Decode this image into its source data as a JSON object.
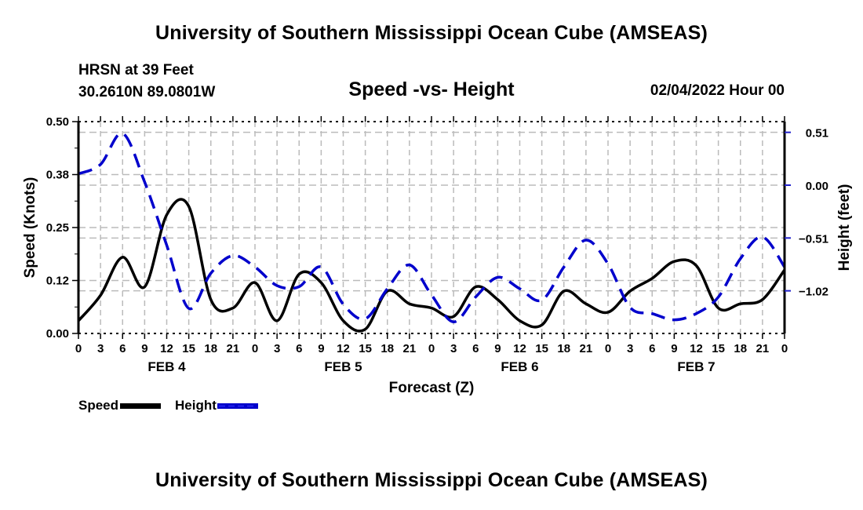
{
  "header": {
    "title": "University of Southern Mississippi Ocean Cube (AMSEAS)",
    "station_line1": "HRSN at 39 Feet",
    "station_line2": "30.2610N  89.0801W",
    "subtitle": "Speed -vs- Height",
    "datestamp": "02/04/2022 Hour 00"
  },
  "footer": {
    "title": "University of Southern Mississippi Ocean Cube (AMSEAS)"
  },
  "legend": {
    "speed_label": "Speed",
    "height_label": "Height"
  },
  "colors": {
    "speed": "#000000",
    "height": "#0000cc",
    "grid": "#bbbbbb",
    "right_axis_ticks": "#2222cc"
  },
  "chart_data": {
    "type": "line",
    "title": "Speed -vs- Height",
    "xlabel": "Forecast (Z)",
    "ylabel": "Speed (Knots)",
    "y2label": "Height (feet)",
    "x_unit": "forecast hour from 02/04/2022 00Z",
    "xlim": [
      0,
      96
    ],
    "ylim": [
      0.0,
      0.5
    ],
    "y2lim": [
      -1.53,
      0.62
    ],
    "grid": true,
    "legend_position": "bottom-left",
    "x_tick_labels": [
      "0",
      "3",
      "6",
      "9",
      "12",
      "15",
      "18",
      "21",
      "0",
      "3",
      "6",
      "9",
      "12",
      "15",
      "18",
      "21",
      "0",
      "3",
      "6",
      "9",
      "12",
      "15",
      "18",
      "21",
      "0",
      "3",
      "6",
      "9",
      "12",
      "15",
      "18",
      "21",
      "0"
    ],
    "x_ticks": [
      0,
      3,
      6,
      9,
      12,
      15,
      18,
      21,
      24,
      27,
      30,
      33,
      36,
      39,
      42,
      45,
      48,
      51,
      54,
      57,
      60,
      63,
      66,
      69,
      72,
      75,
      78,
      81,
      84,
      87,
      90,
      93,
      96
    ],
    "day_labels": [
      {
        "label": "FEB 4",
        "center_hour": 12
      },
      {
        "label": "FEB 5",
        "center_hour": 36
      },
      {
        "label": "FEB 6",
        "center_hour": 60
      },
      {
        "label": "FEB 7",
        "center_hour": 84
      }
    ],
    "y_ticks": [
      0.0,
      0.125,
      0.25,
      0.375,
      0.5
    ],
    "y_tick_labels": [
      "0.00",
      "0.12",
      "0.25",
      "0.38",
      "0.50"
    ],
    "y2_ticks": [
      0.51,
      0.0,
      -0.51,
      -1.02
    ],
    "y2_tick_labels": [
      "0.51",
      "0.00",
      "−0.51",
      "−1.02"
    ],
    "x": [
      0,
      3,
      6,
      9,
      12,
      15,
      18,
      21,
      24,
      27,
      30,
      33,
      36,
      39,
      42,
      45,
      48,
      51,
      54,
      57,
      60,
      63,
      66,
      69,
      72,
      75,
      78,
      81,
      84,
      87,
      90,
      93,
      96
    ],
    "series": [
      {
        "name": "Speed",
        "axis": "left",
        "style": "solid",
        "values": [
          0.03,
          0.09,
          0.18,
          0.11,
          0.28,
          0.3,
          0.08,
          0.06,
          0.12,
          0.03,
          0.14,
          0.12,
          0.03,
          0.01,
          0.1,
          0.07,
          0.06,
          0.04,
          0.11,
          0.08,
          0.03,
          0.02,
          0.1,
          0.07,
          0.05,
          0.1,
          0.13,
          0.17,
          0.16,
          0.06,
          0.07,
          0.08,
          0.15
        ]
      },
      {
        "name": "Height",
        "axis": "right",
        "style": "dashed",
        "values": [
          0.11,
          0.2,
          0.5,
          0.03,
          -0.58,
          -1.19,
          -0.85,
          -0.68,
          -0.79,
          -0.97,
          -0.98,
          -0.79,
          -1.15,
          -1.29,
          -1.0,
          -0.77,
          -1.06,
          -1.32,
          -1.08,
          -0.89,
          -1.0,
          -1.11,
          -0.79,
          -0.53,
          -0.76,
          -1.18,
          -1.24,
          -1.3,
          -1.24,
          -1.08,
          -0.71,
          -0.5,
          -0.79
        ]
      }
    ]
  }
}
